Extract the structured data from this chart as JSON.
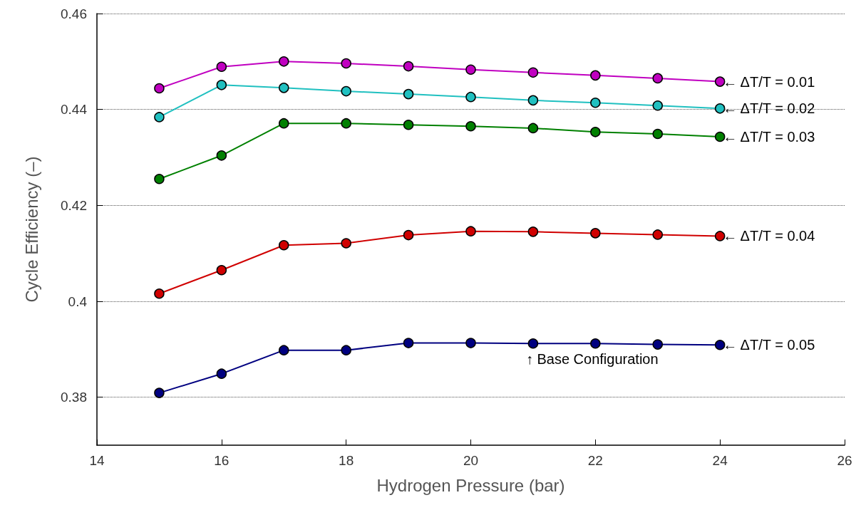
{
  "chart_data": {
    "type": "line",
    "xlabel": "Hydrogen Pressure (bar)",
    "ylabel": "Cycle Efficiency (–)",
    "x": [
      15,
      16,
      17,
      18,
      19,
      20,
      21,
      22,
      23,
      24
    ],
    "series": [
      {
        "name": "← ΔT/T = 0.01",
        "color": "#c000c0",
        "values": [
          0.4444,
          0.4489,
          0.45,
          0.4496,
          0.449,
          0.4483,
          0.4477,
          0.4471,
          0.4465,
          0.4458
        ]
      },
      {
        "name": "← ΔT/T = 0.02",
        "color": "#20c0c0",
        "values": [
          0.4384,
          0.4451,
          0.4445,
          0.4438,
          0.4432,
          0.4426,
          0.4419,
          0.4414,
          0.4408,
          0.4402
        ]
      },
      {
        "name": "← ΔT/T = 0.03",
        "color": "#008000",
        "values": [
          0.4255,
          0.4304,
          0.4371,
          0.4371,
          0.4368,
          0.4365,
          0.4361,
          0.4353,
          0.4349,
          0.4343
        ]
      },
      {
        "name": "← ΔT/T = 0.04",
        "color": "#d00000",
        "values": [
          0.4016,
          0.4065,
          0.4117,
          0.4121,
          0.4138,
          0.4146,
          0.4145,
          0.4142,
          0.4139,
          0.4136
        ]
      },
      {
        "name": "← ΔT/T = 0.05",
        "color": "#000080",
        "values": [
          0.3809,
          0.3849,
          0.3898,
          0.3898,
          0.3913,
          0.3913,
          0.3912,
          0.3912,
          0.391,
          0.3909
        ]
      }
    ],
    "xlim": [
      14,
      26
    ],
    "xticks": [
      14,
      16,
      18,
      20,
      22,
      24,
      26
    ],
    "ylim": [
      0.37,
      0.46
    ],
    "yticks": [
      0.38,
      {
        "value": 0.4,
        "label": "0.4"
      },
      0.42,
      0.44,
      0.46
    ],
    "grid": "y",
    "legend": false,
    "marker": "circle",
    "line_style": "solid",
    "annotations": [
      {
        "text": "↑ Base Configuration",
        "x": 21,
        "y": 0.3912
      }
    ]
  }
}
